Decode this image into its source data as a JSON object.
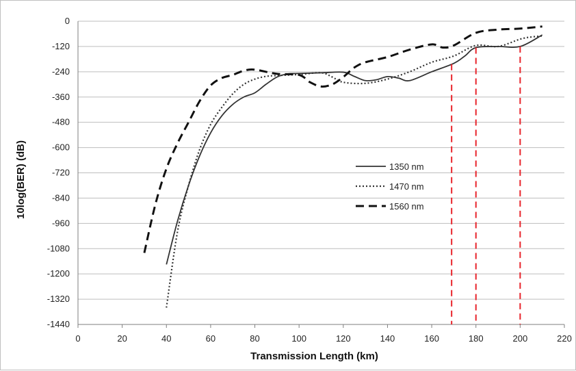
{
  "chart_data": {
    "type": "line",
    "xlabel": "Transmission Length (km)",
    "ylabel": "10log(BER) (dB)",
    "xlim": [
      0,
      220
    ],
    "ylim": [
      -1440,
      0
    ],
    "xticks": [
      0,
      20,
      40,
      60,
      80,
      100,
      120,
      140,
      160,
      180,
      200,
      220
    ],
    "yticks": [
      0,
      -120,
      -240,
      -360,
      -480,
      -600,
      -720,
      -840,
      -960,
      -1080,
      -1200,
      -1320,
      -1440
    ],
    "grid": "horizontal",
    "legend_position": "center-right",
    "series": [
      {
        "name": "1350 nm",
        "style": "solid",
        "color": "#333333",
        "x": [
          40,
          45,
          50,
          55,
          60,
          65,
          70,
          75,
          80,
          85,
          90,
          95,
          100,
          110,
          120,
          125,
          130,
          135,
          140,
          145,
          150,
          160,
          170,
          175,
          180,
          190,
          200,
          210
        ],
        "y": [
          -1155,
          -950,
          -780,
          -640,
          -530,
          -450,
          -395,
          -360,
          -340,
          -300,
          -265,
          -250,
          -248,
          -245,
          -242,
          -262,
          -282,
          -278,
          -263,
          -270,
          -282,
          -240,
          -200,
          -165,
          -125,
          -120,
          -120,
          -65
        ]
      },
      {
        "name": "1470 nm",
        "style": "dotted",
        "color": "#333333",
        "x": [
          40,
          45,
          50,
          55,
          60,
          65,
          70,
          75,
          80,
          85,
          90,
          100,
          110,
          115,
          120,
          130,
          140,
          150,
          160,
          170,
          180,
          190,
          200,
          205,
          210
        ],
        "y": [
          -1360,
          -1000,
          -780,
          -610,
          -490,
          -410,
          -345,
          -300,
          -275,
          -262,
          -258,
          -253,
          -245,
          -265,
          -290,
          -295,
          -275,
          -240,
          -195,
          -165,
          -115,
          -120,
          -85,
          -75,
          -70
        ]
      },
      {
        "name": "1560 nm",
        "style": "dashed",
        "color": "#111111",
        "x": [
          30,
          35,
          40,
          45,
          50,
          55,
          60,
          65,
          70,
          75,
          80,
          90,
          100,
          105,
          110,
          115,
          120,
          125,
          130,
          140,
          150,
          160,
          165,
          170,
          180,
          190,
          200,
          210
        ],
        "y": [
          -1100,
          -870,
          -700,
          -580,
          -480,
          -380,
          -305,
          -270,
          -255,
          -235,
          -230,
          -250,
          -255,
          -290,
          -310,
          -300,
          -265,
          -220,
          -195,
          -170,
          -135,
          -110,
          -125,
          -115,
          -55,
          -40,
          -35,
          -25
        ]
      }
    ],
    "markers": {
      "color": "#e8232a",
      "x": [
        169,
        180,
        200
      ]
    }
  }
}
